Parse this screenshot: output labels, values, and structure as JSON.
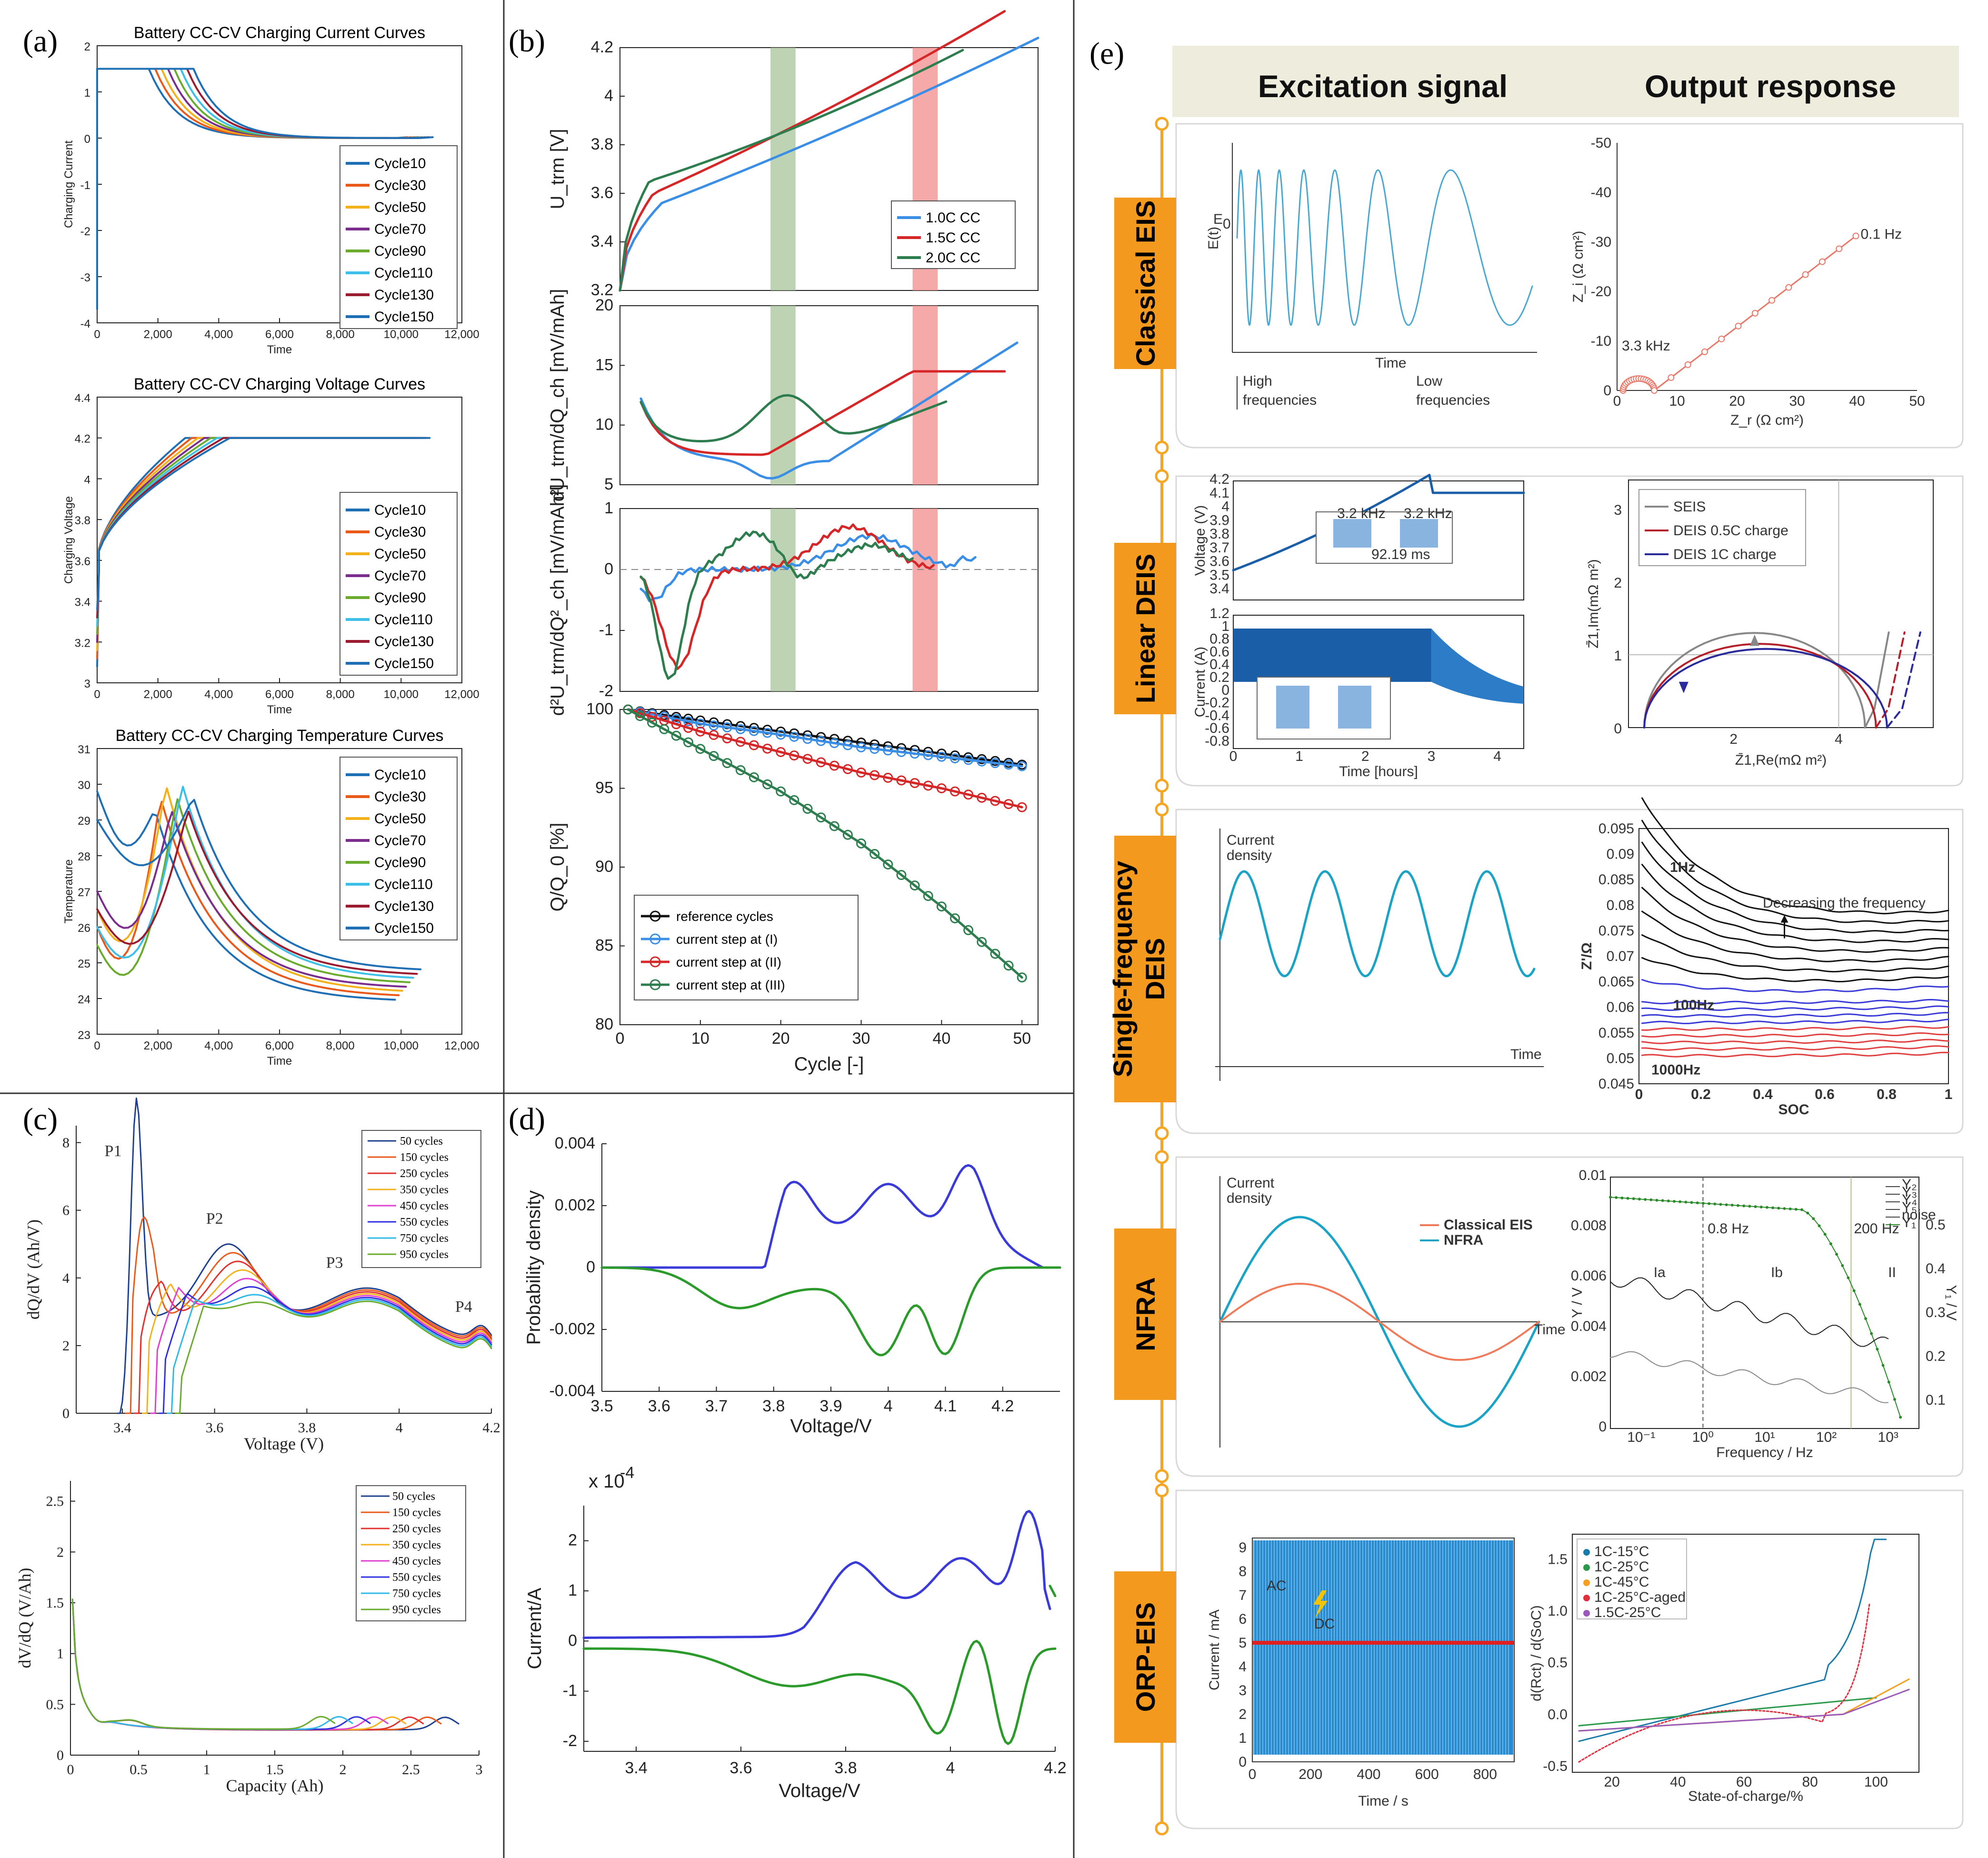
{
  "chart_data": [
    {
      "id": "a1",
      "type": "line",
      "panel": "(a)",
      "title": "Battery CC-CV Charging Current Curves",
      "xlabel": "Time",
      "ylabel": "Charging Current",
      "xlim": [
        0,
        12000
      ],
      "ylim": [
        -4,
        2
      ],
      "xticks": [
        "0",
        "2,000",
        "4,000",
        "6,000",
        "8,000",
        "10,000",
        "12,000"
      ],
      "yticks": [
        "-4",
        "-3",
        "-2",
        "-1",
        "0",
        "1",
        "2"
      ],
      "legend": [
        "Cycle10",
        "Cycle30",
        "Cycle50",
        "Cycle70",
        "Cycle90",
        "Cycle110",
        "Cycle130",
        "Cycle150"
      ],
      "series_colors": [
        "#1f6fb5",
        "#e8591a",
        "#f3b21b",
        "#7b2d8e",
        "#6aab2e",
        "#3dbfe8",
        "#9a1b2f",
        "#1f6fb5"
      ]
    },
    {
      "id": "a2",
      "type": "line",
      "panel": "(a)",
      "title": "Battery CC-CV Charging Voltage Curves",
      "xlabel": "Time",
      "ylabel": "Charging Voltage",
      "xlim": [
        0,
        12000
      ],
      "ylim": [
        3,
        4.4
      ],
      "xticks": [
        "0",
        "2,000",
        "4,000",
        "6,000",
        "8,000",
        "10,000",
        "12,000"
      ],
      "yticks": [
        "3",
        "3.2",
        "3.4",
        "3.6",
        "3.8",
        "4",
        "4.2",
        "4.4"
      ],
      "legend": [
        "Cycle10",
        "Cycle30",
        "Cycle50",
        "Cycle70",
        "Cycle90",
        "Cycle110",
        "Cycle130",
        "Cycle150"
      ]
    },
    {
      "id": "a3",
      "type": "line",
      "panel": "(a)",
      "title": "Battery CC-CV Charging Temperature Curves",
      "xlabel": "Time",
      "ylabel": "Temperature",
      "xlim": [
        0,
        12000
      ],
      "ylim": [
        23,
        31
      ],
      "xticks": [
        "0",
        "2,000",
        "4,000",
        "6,000",
        "8,000",
        "10,000",
        "12,000"
      ],
      "yticks": [
        "23",
        "24",
        "25",
        "26",
        "27",
        "28",
        "29",
        "30",
        "31"
      ],
      "legend": [
        "Cycle10",
        "Cycle30",
        "Cycle50",
        "Cycle70",
        "Cycle90",
        "Cycle110",
        "Cycle130",
        "Cycle150"
      ]
    },
    {
      "id": "b1",
      "type": "line",
      "panel": "(b)",
      "ylabel": "U_trm [V]",
      "xlim": [
        0,
        55
      ],
      "ylim": [
        3.2,
        4.2
      ],
      "yticks": [
        "3.2",
        "3.4",
        "3.6",
        "3.8",
        "4",
        "4.2"
      ],
      "legend": [
        "1.0C CC",
        "1.5C CC",
        "2.0C CC"
      ],
      "series_colors": [
        "#3a8ee6",
        "#d62728",
        "#2e7d4f"
      ]
    },
    {
      "id": "b2",
      "type": "line",
      "panel": "(b)",
      "ylabel": "dU_trm/dQ_ch [mV/mAh]",
      "ylim": [
        5,
        20
      ],
      "yticks": [
        "5",
        "10",
        "15",
        "20"
      ]
    },
    {
      "id": "b3",
      "type": "line",
      "panel": "(b)",
      "ylabel": "d²U_trm/dQ²_ch [mV/mAh²]",
      "ylim": [
        -2,
        1
      ],
      "yticks": [
        "-2",
        "-1",
        "0",
        "1"
      ]
    },
    {
      "id": "b4",
      "type": "line",
      "panel": "(b)",
      "xlabel": "Cycle [-]",
      "ylabel": "Q/Q_0 [%]",
      "xlim": [
        0,
        52
      ],
      "ylim": [
        80,
        100
      ],
      "xticks": [
        "0",
        "10",
        "20",
        "30",
        "40",
        "50"
      ],
      "yticks": [
        "80",
        "85",
        "90",
        "95",
        "100"
      ],
      "legend": [
        "reference cycles",
        "current step at (I)",
        "current step at (II)",
        "current step at (III)"
      ],
      "x": [
        1,
        10,
        20,
        30,
        40,
        50
      ],
      "series": [
        {
          "name": "reference cycles",
          "values": [
            100,
            99.3,
            98.6,
            97.9,
            97.2,
            96.5
          ]
        },
        {
          "name": "current step at (I)",
          "values": [
            100,
            99.1,
            98.4,
            97.6,
            97.0,
            96.4
          ]
        },
        {
          "name": "current step at (II)",
          "values": [
            100,
            98.6,
            97.3,
            96.0,
            95.0,
            93.8
          ]
        },
        {
          "name": "current step at (III)",
          "values": [
            100,
            97.5,
            94.8,
            91.5,
            87.5,
            83.0
          ]
        }
      ]
    },
    {
      "id": "c1",
      "type": "line",
      "panel": "(c)",
      "xlabel": "Voltage (V)",
      "ylabel": "dQ/dV (Ah/V)",
      "xlim": [
        3.3,
        4.2
      ],
      "ylim": [
        0,
        8.5
      ],
      "xticks": [
        "3.4",
        "3.6",
        "3.8",
        "4",
        "4.2"
      ],
      "yticks": [
        "0",
        "2",
        "4",
        "6",
        "8"
      ],
      "annotations": [
        "P1",
        "P2",
        "P3",
        "P4"
      ],
      "legend": [
        "50 cycles",
        "150 cycles",
        "250 cycles",
        "350 cycles",
        "450 cycles",
        "550 cycles",
        "750 cycles",
        "950 cycles"
      ],
      "series_colors": [
        "#1f3f8f",
        "#e8591a",
        "#e0302f",
        "#f3b21b",
        "#e040d0",
        "#3030e0",
        "#30b8e8",
        "#6aab2e"
      ]
    },
    {
      "id": "c2",
      "type": "line",
      "panel": "(c)",
      "xlabel": "Capacity (Ah)",
      "ylabel": "dV/dQ (V/Ah)",
      "xlim": [
        0,
        3
      ],
      "ylim": [
        0,
        2.7
      ],
      "xticks": [
        "0",
        "0.5",
        "1",
        "1.5",
        "2",
        "2.5",
        "3"
      ],
      "yticks": [
        "0",
        "0.5",
        "1",
        "1.5",
        "2",
        "2.5"
      ],
      "legend": [
        "50 cycles",
        "150 cycles",
        "250 cycles",
        "350 cycles",
        "450 cycles",
        "550 cycles",
        "750 cycles",
        "950 cycles"
      ]
    },
    {
      "id": "d1",
      "type": "line",
      "panel": "(d)",
      "xlabel": "Voltage/V",
      "ylabel": "Probability density",
      "xlim": [
        3.5,
        4.3
      ],
      "ylim": [
        -0.004,
        0.004
      ],
      "xticks": [
        "3.5",
        "3.6",
        "3.7",
        "3.8",
        "3.9",
        "4",
        "4.1",
        "4.2"
      ],
      "yticks": [
        "-0.004",
        "-0.002",
        "0",
        "0.002",
        "0.004"
      ],
      "series_colors": [
        "#3a3ad8",
        "#2a9a2a"
      ]
    },
    {
      "id": "d2",
      "type": "line",
      "panel": "(d)",
      "xlabel": "Voltage/V",
      "ylabel": "Current/A",
      "yscale_label": "x 10",
      "yscale_exp": "-4",
      "xlim": [
        3.3,
        4.2
      ],
      "ylim": [
        -2.2,
        2.7
      ],
      "xticks": [
        "3.4",
        "3.6",
        "3.8",
        "4",
        "4.2"
      ],
      "yticks": [
        "-2",
        "-1",
        "0",
        "1",
        "2"
      ]
    }
  ],
  "panel_e": {
    "label": "(e)",
    "col_excitation": "Excitation signal",
    "col_output": "Output response",
    "rows": [
      {
        "tag": "Classical EIS",
        "exc": {
          "xlabel": "Time",
          "ylabel": "E(t)",
          "e0": "E",
          "e0_sub": "0",
          "left": "High frequencies",
          "right": "Low frequencies"
        },
        "out": {
          "xlabel": "Z_r (Ω cm²)",
          "ylabel": "Z_i (Ω cm²)",
          "xticks": [
            "0",
            "10",
            "20",
            "30",
            "40",
            "50"
          ],
          "yticks": [
            "0",
            "-10",
            "-20",
            "-30",
            "-40",
            "-50"
          ],
          "hi": "3.3 kHz",
          "lo": "0.1 Hz"
        }
      },
      {
        "tag": "Linear DEIS",
        "exc": {
          "ylabel_top": "Voltage (V)",
          "ylabel_bot": "Current (A)",
          "xlabel": "Time [hours]",
          "yticks_top": [
            "3.4",
            "3.5",
            "3.6",
            "3.7",
            "3.8",
            "3.9",
            "4",
            "4.1",
            "4.2"
          ],
          "yticks_bot": [
            "-0.8",
            "-0.6",
            "-0.4",
            "-0.2",
            "0",
            "0.2",
            "0.4",
            "0.6",
            "0.8",
            "1",
            "1.2"
          ],
          "xticks": [
            "0",
            "1",
            "2",
            "3",
            "4"
          ],
          "inset": [
            "3.2 kHz",
            "3.2 kHz",
            "92.19 ms"
          ]
        },
        "out": {
          "xlabel": "Z̄1,Re(mΩ m²)",
          "ylabel": "Z̄1,Im(mΩ m²)",
          "xticks": [
            "2",
            "4"
          ],
          "yticks": [
            "0",
            "1",
            "2",
            "3"
          ],
          "legend": [
            "SEIS",
            "DEIS 0.5C charge",
            "DEIS 1C charge"
          ]
        }
      },
      {
        "tag": "Single-frequency DEIS",
        "exc": {
          "ylabel": "Current density",
          "xlabel": "Time"
        },
        "out": {
          "xlabel": "SOC",
          "ylabel": "Z'/Ω",
          "xticks": [
            "0",
            "0.2",
            "0.4",
            "0.6",
            "0.8",
            "1"
          ],
          "yticks": [
            "0.045",
            "0.05",
            "0.055",
            "0.06",
            "0.065",
            "0.07",
            "0.075",
            "0.08",
            "0.085",
            "0.09",
            "0.095"
          ],
          "notes": [
            "1Hz",
            "Decreasing the frequency",
            "100Hz",
            "1000Hz"
          ]
        }
      },
      {
        "tag": "NFRA",
        "exc": {
          "ylabel": "Current density",
          "xlabel": "Time",
          "legend": [
            "Classical EIS",
            "NFRA"
          ]
        },
        "out": {
          "xlabel": "Frequency / Hz",
          "ylabel": "Y / V",
          "ylabel2": "Y₁ / V",
          "yticks": [
            "0",
            "0.002",
            "0.004",
            "0.006",
            "0.008",
            "0.01"
          ],
          "yticks2": [
            "0.1",
            "0.2",
            "0.3",
            "0.4",
            "0.5"
          ],
          "xticks": [
            "10⁻¹",
            "10⁰",
            "10¹",
            "10²",
            "10³"
          ],
          "regions": [
            "Ia",
            "Ib",
            "II"
          ],
          "marks": [
            "0.8 Hz",
            "200 Hz"
          ],
          "legend": [
            "Y₂",
            "Y₃",
            "Y₄",
            "Y₅",
            "noise",
            "Y₁"
          ]
        }
      },
      {
        "tag": "ORP-EIS",
        "exc": {
          "ylabel": "Current / mA",
          "xlabel": "Time / s",
          "ac": "AC",
          "dc": "DC",
          "xticks": [
            "0",
            "200",
            "400",
            "600",
            "800"
          ],
          "yticks": [
            "0",
            "1",
            "2",
            "3",
            "4",
            "5",
            "6",
            "7",
            "8",
            "9"
          ]
        },
        "out": {
          "xlabel": "State-of-charge/%",
          "ylabel": "d(Rct) / d(SoC)",
          "xticks": [
            "20",
            "40",
            "60",
            "80",
            "100"
          ],
          "yticks": [
            "-0.5",
            "0.0",
            "0.5",
            "1.0",
            "1.5"
          ],
          "legend": [
            "1C-15°C",
            "1C-25°C",
            "1C-45°C",
            "1C-25°C-aged",
            "1.5C-25°C"
          ]
        }
      }
    ]
  }
}
